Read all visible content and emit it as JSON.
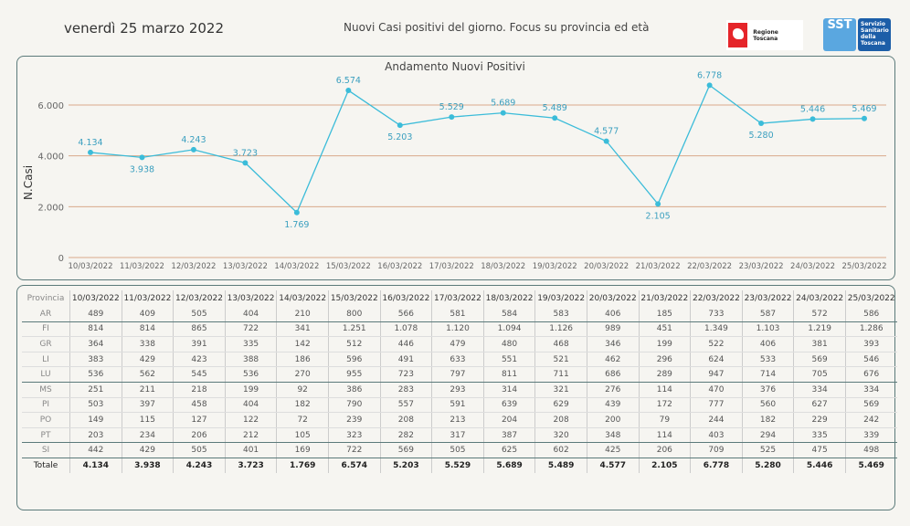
{
  "header": {
    "date": "venerdì 25 marzo 2022",
    "title": "Nuovi Casi positivi del giorno. Focus su provincia ed età",
    "logo_regione": "Regione Toscana",
    "logo_sst": "SST",
    "logo_sst_text": "Servizio Sanitario della Toscana"
  },
  "chart_data": {
    "type": "line",
    "title": "Andamento Nuovi Positivi",
    "xlabel": "",
    "ylabel": "N.Casi",
    "ylim": [
      0,
      6800
    ],
    "yticks": [
      0,
      2000,
      4000,
      6000
    ],
    "ytick_labels": [
      "0",
      "2.000",
      "4.000",
      "6.000"
    ],
    "grid": true,
    "color": "#3bbcd9",
    "gridcolor": "#d9a98a",
    "categories": [
      "10/03/2022",
      "11/03/2022",
      "12/03/2022",
      "13/03/2022",
      "14/03/2022",
      "15/03/2022",
      "16/03/2022",
      "17/03/2022",
      "18/03/2022",
      "19/03/2022",
      "20/03/2022",
      "21/03/2022",
      "22/03/2022",
      "23/03/2022",
      "24/03/2022",
      "25/03/2022"
    ],
    "values": [
      4134,
      3938,
      4243,
      3723,
      1769,
      6574,
      5203,
      5529,
      5689,
      5489,
      4577,
      2105,
      6778,
      5280,
      5446,
      5469
    ],
    "labels": [
      "4.134",
      "3.938",
      "4.243",
      "3.723",
      "1.769",
      "6.574",
      "5.203",
      "5.529",
      "5.689",
      "5.489",
      "4.577",
      "2.105",
      "6.778",
      "5.280",
      "5.446",
      "5.469"
    ]
  },
  "table": {
    "header": "Provincia",
    "total_label": "Totale",
    "rows": [
      {
        "p": "AR",
        "v": [
          "489",
          "409",
          "505",
          "404",
          "210",
          "800",
          "566",
          "581",
          "584",
          "583",
          "406",
          "185",
          "733",
          "587",
          "572",
          "586"
        ]
      },
      {
        "p": "FI",
        "v": [
          "814",
          "814",
          "865",
          "722",
          "341",
          "1.251",
          "1.078",
          "1.120",
          "1.094",
          "1.126",
          "989",
          "451",
          "1.349",
          "1.103",
          "1.219",
          "1.286"
        ]
      },
      {
        "p": "GR",
        "v": [
          "364",
          "338",
          "391",
          "335",
          "142",
          "512",
          "446",
          "479",
          "480",
          "468",
          "346",
          "199",
          "522",
          "406",
          "381",
          "393"
        ]
      },
      {
        "p": "LI",
        "v": [
          "383",
          "429",
          "423",
          "388",
          "186",
          "596",
          "491",
          "633",
          "551",
          "521",
          "462",
          "296",
          "624",
          "533",
          "569",
          "546"
        ]
      },
      {
        "p": "LU",
        "v": [
          "536",
          "562",
          "545",
          "536",
          "270",
          "955",
          "723",
          "797",
          "811",
          "711",
          "686",
          "289",
          "947",
          "714",
          "705",
          "676"
        ]
      },
      {
        "p": "MS",
        "v": [
          "251",
          "211",
          "218",
          "199",
          "92",
          "386",
          "283",
          "293",
          "314",
          "321",
          "276",
          "114",
          "470",
          "376",
          "334",
          "334"
        ]
      },
      {
        "p": "PI",
        "v": [
          "503",
          "397",
          "458",
          "404",
          "182",
          "790",
          "557",
          "591",
          "639",
          "629",
          "439",
          "172",
          "777",
          "560",
          "627",
          "569"
        ]
      },
      {
        "p": "PO",
        "v": [
          "149",
          "115",
          "127",
          "122",
          "72",
          "239",
          "208",
          "213",
          "204",
          "208",
          "200",
          "79",
          "244",
          "182",
          "229",
          "242"
        ]
      },
      {
        "p": "PT",
        "v": [
          "203",
          "234",
          "206",
          "212",
          "105",
          "323",
          "282",
          "317",
          "387",
          "320",
          "348",
          "114",
          "403",
          "294",
          "335",
          "339"
        ]
      },
      {
        "p": "SI",
        "v": [
          "442",
          "429",
          "505",
          "401",
          "169",
          "722",
          "569",
          "505",
          "625",
          "602",
          "425",
          "206",
          "709",
          "525",
          "475",
          "498"
        ]
      }
    ],
    "totals": [
      "4.134",
      "3.938",
      "4.243",
      "3.723",
      "1.769",
      "6.574",
      "5.203",
      "5.529",
      "5.689",
      "5.489",
      "4.577",
      "2.105",
      "6.778",
      "5.280",
      "5.446",
      "5.469"
    ]
  }
}
